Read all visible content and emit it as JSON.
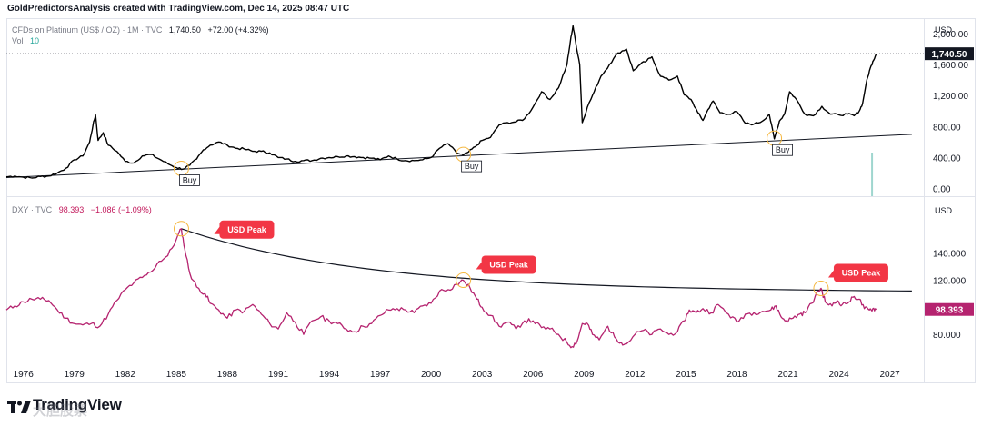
{
  "header": {
    "text": "GoldPredictorsAnalysis created with TradingView.com, Dec 14, 2025 08:47 UTC"
  },
  "top_legend": {
    "symbol": "CFDs on Platinum (US$ / OZ) · 1M · TVC",
    "last": "1,740.50",
    "change": "+72.00 (+4.32%)",
    "vol_label": "Vol",
    "vol_value": "10"
  },
  "bottom_legend": {
    "symbol": "DXY · TVC",
    "last": "98.393",
    "change": "−1.086 (−1.09%)"
  },
  "logo": {
    "text": "TradingView",
    "watermark": "大胆股票"
  },
  "colors": {
    "platinum": "#000000",
    "dxy": "#b5236f",
    "peak_bg": "#f23645",
    "circle": "#f5b841",
    "volume": "#9fd6cf"
  },
  "chart_data": [
    {
      "type": "line",
      "title": "CFDs on Platinum (US$ / OZ) · 1M · TVC",
      "currency": "USD",
      "y_ticks": [
        "2,000.00",
        "1,600.00",
        "1,200.00",
        "800.00",
        "400.00",
        "0.00"
      ],
      "y_tick_values": [
        2000,
        1600,
        1200,
        800,
        400,
        0
      ],
      "ylim": [
        -100,
        2200
      ],
      "last_value_label": "1,740.50",
      "last_value": 1740.5,
      "series": [
        {
          "name": "Platinum",
          "points": [
            [
              1975.0,
              150
            ],
            [
              1975.5,
              160
            ],
            [
              1976.0,
              145
            ],
            [
              1976.5,
              135
            ],
            [
              1977.0,
              155
            ],
            [
              1977.5,
              160
            ],
            [
              1978.0,
              200
            ],
            [
              1978.5,
              260
            ],
            [
              1979.0,
              370
            ],
            [
              1979.5,
              420
            ],
            [
              1979.9,
              600
            ],
            [
              1980.1,
              820
            ],
            [
              1980.25,
              950
            ],
            [
              1980.4,
              620
            ],
            [
              1980.7,
              720
            ],
            [
              1981.0,
              560
            ],
            [
              1981.5,
              480
            ],
            [
              1982.0,
              350
            ],
            [
              1982.5,
              330
            ],
            [
              1983.0,
              420
            ],
            [
              1983.5,
              440
            ],
            [
              1984.0,
              380
            ],
            [
              1984.5,
              320
            ],
            [
              1985.0,
              270
            ],
            [
              1985.4,
              250
            ],
            [
              1985.8,
              300
            ],
            [
              1986.2,
              380
            ],
            [
              1986.6,
              500
            ],
            [
              1987.0,
              560
            ],
            [
              1987.5,
              600
            ],
            [
              1988.0,
              560
            ],
            [
              1988.5,
              520
            ],
            [
              1989.0,
              510
            ],
            [
              1989.5,
              480
            ],
            [
              1990.0,
              480
            ],
            [
              1990.5,
              460
            ],
            [
              1991.0,
              400
            ],
            [
              1991.5,
              380
            ],
            [
              1992.0,
              350
            ],
            [
              1992.5,
              360
            ],
            [
              1993.0,
              360
            ],
            [
              1993.5,
              390
            ],
            [
              1994.0,
              400
            ],
            [
              1994.5,
              410
            ],
            [
              1995.0,
              420
            ],
            [
              1995.5,
              410
            ],
            [
              1996.0,
              400
            ],
            [
              1996.5,
              390
            ],
            [
              1997.0,
              370
            ],
            [
              1997.5,
              420
            ],
            [
              1998.0,
              380
            ],
            [
              1998.5,
              360
            ],
            [
              1999.0,
              360
            ],
            [
              1999.5,
              370
            ],
            [
              2000.0,
              400
            ],
            [
              2000.5,
              520
            ],
            [
              2001.0,
              580
            ],
            [
              2001.5,
              460
            ],
            [
              2001.9,
              430
            ],
            [
              2002.2,
              470
            ],
            [
              2002.6,
              540
            ],
            [
              2003.0,
              620
            ],
            [
              2003.5,
              660
            ],
            [
              2004.0,
              820
            ],
            [
              2004.5,
              850
            ],
            [
              2005.0,
              860
            ],
            [
              2005.5,
              900
            ],
            [
              2006.0,
              1050
            ],
            [
              2006.5,
              1250
            ],
            [
              2007.0,
              1150
            ],
            [
              2007.5,
              1300
            ],
            [
              2008.0,
              1600
            ],
            [
              2008.2,
              1900
            ],
            [
              2008.35,
              2100
            ],
            [
              2008.5,
              1900
            ],
            [
              2008.75,
              1600
            ],
            [
              2008.9,
              850
            ],
            [
              2009.2,
              1050
            ],
            [
              2009.6,
              1250
            ],
            [
              2010.0,
              1450
            ],
            [
              2010.5,
              1600
            ],
            [
              2011.0,
              1750
            ],
            [
              2011.5,
              1800
            ],
            [
              2011.9,
              1520
            ],
            [
              2012.3,
              1600
            ],
            [
              2012.7,
              1650
            ],
            [
              2013.0,
              1700
            ],
            [
              2013.5,
              1450
            ],
            [
              2014.0,
              1400
            ],
            [
              2014.5,
              1450
            ],
            [
              2014.9,
              1210
            ],
            [
              2015.3,
              1150
            ],
            [
              2015.7,
              980
            ],
            [
              2016.0,
              880
            ],
            [
              2016.3,
              1020
            ],
            [
              2016.6,
              1130
            ],
            [
              2017.0,
              980
            ],
            [
              2017.5,
              960
            ],
            [
              2018.0,
              990
            ],
            [
              2018.5,
              840
            ],
            [
              2019.0,
              830
            ],
            [
              2019.5,
              870
            ],
            [
              2019.9,
              960
            ],
            [
              2020.2,
              640
            ],
            [
              2020.5,
              870
            ],
            [
              2020.8,
              960
            ],
            [
              2021.1,
              1250
            ],
            [
              2021.5,
              1150
            ],
            [
              2022.0,
              960
            ],
            [
              2022.5,
              940
            ],
            [
              2023.0,
              1060
            ],
            [
              2023.5,
              960
            ],
            [
              2024.0,
              950
            ],
            [
              2024.5,
              960
            ],
            [
              2024.9,
              940
            ],
            [
              2025.2,
              1000
            ],
            [
              2025.4,
              1100
            ],
            [
              2025.6,
              1350
            ],
            [
              2025.8,
              1520
            ],
            [
              2026.0,
              1640
            ],
            [
              2026.2,
              1740
            ]
          ]
        }
      ],
      "trendline": {
        "from": [
          1975.0,
          140
        ],
        "to": [
          2028.3,
          700
        ]
      },
      "annotations": [
        {
          "label": "Buy",
          "x": 1985.3,
          "y": 235
        },
        {
          "label": "Buy",
          "x": 2001.9,
          "y": 415
        },
        {
          "label": "Buy",
          "x": 2020.2,
          "y": 625
        }
      ],
      "volume_bars": [
        {
          "x": 2025.9,
          "value": 10
        }
      ]
    },
    {
      "type": "line",
      "title": "DXY · TVC",
      "currency": "USD",
      "y_ticks": [
        "140.000",
        "120.000",
        "80.000"
      ],
      "y_tick_values": [
        140,
        120,
        80
      ],
      "ylim": [
        60,
        182
      ],
      "last_value_label": "98.393",
      "last_value": 98.393,
      "x_ticks": [
        "1976",
        "1979",
        "1982",
        "1985",
        "1988",
        "1991",
        "1994",
        "1997",
        "2000",
        "2003",
        "2006",
        "2009",
        "2012",
        "2015",
        "2018",
        "2021",
        "2024",
        "2027"
      ],
      "x_tick_values": [
        1976,
        1979,
        1982,
        1985,
        1988,
        1991,
        1994,
        1997,
        2000,
        2003,
        2006,
        2009,
        2012,
        2015,
        2018,
        2021,
        2024,
        2027
      ],
      "series": [
        {
          "name": "DXY",
          "points": [
            [
              1975.0,
              98
            ],
            [
              1975.5,
              101
            ],
            [
              1976.0,
              104
            ],
            [
              1976.5,
              106
            ],
            [
              1977.0,
              106
            ],
            [
              1977.5,
              105
            ],
            [
              1978.0,
              98
            ],
            [
              1978.5,
              92
            ],
            [
              1979.0,
              88
            ],
            [
              1979.5,
              87
            ],
            [
              1980.0,
              88
            ],
            [
              1980.5,
              86
            ],
            [
              1981.0,
              95
            ],
            [
              1981.5,
              105
            ],
            [
              1982.0,
              113
            ],
            [
              1982.5,
              118
            ],
            [
              1983.0,
              122
            ],
            [
              1983.5,
              126
            ],
            [
              1984.0,
              134
            ],
            [
              1984.5,
              138
            ],
            [
              1985.0,
              150
            ],
            [
              1985.3,
              158
            ],
            [
              1985.5,
              143
            ],
            [
              1985.8,
              125
            ],
            [
              1986.2,
              115
            ],
            [
              1986.7,
              110
            ],
            [
              1987.0,
              103
            ],
            [
              1987.5,
              98
            ],
            [
              1988.0,
              92
            ],
            [
              1988.5,
              98
            ],
            [
              1989.0,
              97
            ],
            [
              1989.5,
              102
            ],
            [
              1990.0,
              95
            ],
            [
              1990.5,
              88
            ],
            [
              1991.0,
              84
            ],
            [
              1991.5,
              96
            ],
            [
              1992.0,
              89
            ],
            [
              1992.5,
              80
            ],
            [
              1993.0,
              90
            ],
            [
              1993.5,
              93
            ],
            [
              1994.0,
              90
            ],
            [
              1994.5,
              88
            ],
            [
              1995.0,
              84
            ],
            [
              1995.5,
              82
            ],
            [
              1996.0,
              86
            ],
            [
              1996.5,
              88
            ],
            [
              1997.0,
              94
            ],
            [
              1997.5,
              98
            ],
            [
              1998.0,
              99
            ],
            [
              1998.5,
              98
            ],
            [
              1999.0,
              96
            ],
            [
              1999.5,
              101
            ],
            [
              2000.0,
              103
            ],
            [
              2000.5,
              112
            ],
            [
              2001.0,
              113
            ],
            [
              2001.5,
              117
            ],
            [
              2001.9,
              120
            ],
            [
              2002.3,
              114
            ],
            [
              2002.7,
              106
            ],
            [
              2003.0,
              100
            ],
            [
              2003.5,
              94
            ],
            [
              2004.0,
              86
            ],
            [
              2004.5,
              89
            ],
            [
              2005.0,
              84
            ],
            [
              2005.5,
              90
            ],
            [
              2006.0,
              90
            ],
            [
              2006.5,
              85
            ],
            [
              2007.0,
              84
            ],
            [
              2007.5,
              80
            ],
            [
              2008.0,
              74
            ],
            [
              2008.3,
              71
            ],
            [
              2008.6,
              75
            ],
            [
              2008.9,
              88
            ],
            [
              2009.2,
              88
            ],
            [
              2009.5,
              80
            ],
            [
              2009.9,
              76
            ],
            [
              2010.4,
              86
            ],
            [
              2010.8,
              78
            ],
            [
              2011.2,
              74
            ],
            [
              2011.5,
              73
            ],
            [
              2012.0,
              80
            ],
            [
              2012.5,
              83
            ],
            [
              2013.0,
              80
            ],
            [
              2013.5,
              84
            ],
            [
              2014.0,
              80
            ],
            [
              2014.5,
              82
            ],
            [
              2014.9,
              90
            ],
            [
              2015.2,
              98
            ],
            [
              2015.6,
              96
            ],
            [
              2016.0,
              99
            ],
            [
              2016.5,
              96
            ],
            [
              2016.9,
              102
            ],
            [
              2017.5,
              95
            ],
            [
              2018.0,
              89
            ],
            [
              2018.5,
              95
            ],
            [
              2019.0,
              96
            ],
            [
              2019.5,
              97
            ],
            [
              2020.0,
              98
            ],
            [
              2020.3,
              101
            ],
            [
              2020.6,
              93
            ],
            [
              2020.9,
              90
            ],
            [
              2021.3,
              92
            ],
            [
              2021.7,
              95
            ],
            [
              2022.0,
              96
            ],
            [
              2022.4,
              103
            ],
            [
              2022.8,
              112
            ],
            [
              2022.95,
              114
            ],
            [
              2023.2,
              104
            ],
            [
              2023.6,
              101
            ],
            [
              2023.9,
              105
            ],
            [
              2024.2,
              102
            ],
            [
              2024.6,
              104
            ],
            [
              2024.9,
              108
            ],
            [
              2025.2,
              106
            ],
            [
              2025.5,
              99
            ],
            [
              2025.8,
              98
            ],
            [
              2026.0,
              99
            ],
            [
              2026.2,
              98.4
            ]
          ]
        }
      ],
      "decay_curve": {
        "start": [
          1985.3,
          158
        ],
        "end": [
          2028.3,
          112
        ],
        "shape": "exponential decay"
      },
      "annotations": [
        {
          "label": "USD Peak",
          "x": 1985.3,
          "y": 158
        },
        {
          "label": "USD Peak",
          "x": 2001.9,
          "y": 120
        },
        {
          "label": "USD Peak",
          "x": 2022.95,
          "y": 114
        }
      ]
    }
  ]
}
